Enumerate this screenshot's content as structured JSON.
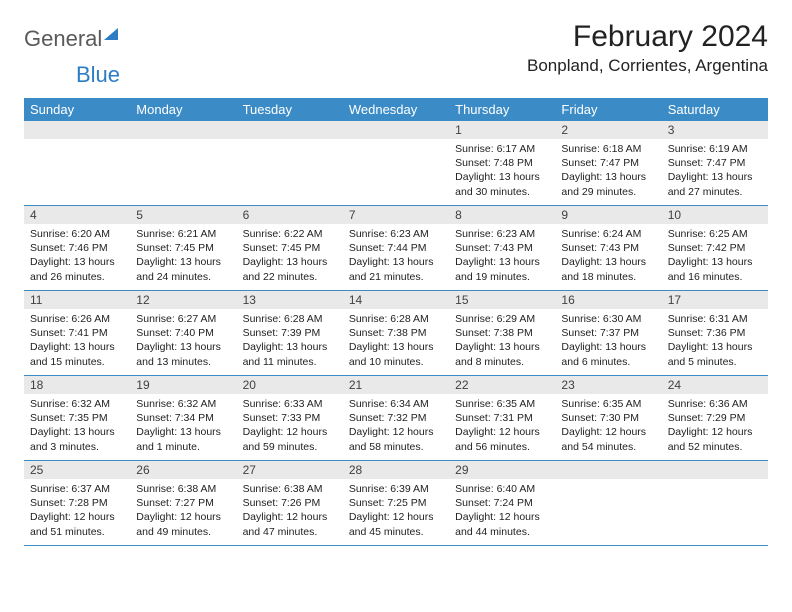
{
  "logo": {
    "part1": "General",
    "part2": "Blue"
  },
  "title": "February 2024",
  "location": "Bonpland, Corrientes, Argentina",
  "weekdays": [
    "Sunday",
    "Monday",
    "Tuesday",
    "Wednesday",
    "Thursday",
    "Friday",
    "Saturday"
  ],
  "colors": {
    "header_bg": "#3b8bc7",
    "header_text": "#ffffff",
    "daynum_bg": "#e9e9e9",
    "logo_blue": "#2d7dc4",
    "logo_gray": "#5a5a5a",
    "border": "#3b8bc7"
  },
  "layout": {
    "cols": 7,
    "rows": 5,
    "first_weekday_index": 4
  },
  "days": [
    {
      "n": "1",
      "sunrise": "6:17 AM",
      "sunset": "7:48 PM",
      "daylight": "13 hours and 30 minutes."
    },
    {
      "n": "2",
      "sunrise": "6:18 AM",
      "sunset": "7:47 PM",
      "daylight": "13 hours and 29 minutes."
    },
    {
      "n": "3",
      "sunrise": "6:19 AM",
      "sunset": "7:47 PM",
      "daylight": "13 hours and 27 minutes."
    },
    {
      "n": "4",
      "sunrise": "6:20 AM",
      "sunset": "7:46 PM",
      "daylight": "13 hours and 26 minutes."
    },
    {
      "n": "5",
      "sunrise": "6:21 AM",
      "sunset": "7:45 PM",
      "daylight": "13 hours and 24 minutes."
    },
    {
      "n": "6",
      "sunrise": "6:22 AM",
      "sunset": "7:45 PM",
      "daylight": "13 hours and 22 minutes."
    },
    {
      "n": "7",
      "sunrise": "6:23 AM",
      "sunset": "7:44 PM",
      "daylight": "13 hours and 21 minutes."
    },
    {
      "n": "8",
      "sunrise": "6:23 AM",
      "sunset": "7:43 PM",
      "daylight": "13 hours and 19 minutes."
    },
    {
      "n": "9",
      "sunrise": "6:24 AM",
      "sunset": "7:43 PM",
      "daylight": "13 hours and 18 minutes."
    },
    {
      "n": "10",
      "sunrise": "6:25 AM",
      "sunset": "7:42 PM",
      "daylight": "13 hours and 16 minutes."
    },
    {
      "n": "11",
      "sunrise": "6:26 AM",
      "sunset": "7:41 PM",
      "daylight": "13 hours and 15 minutes."
    },
    {
      "n": "12",
      "sunrise": "6:27 AM",
      "sunset": "7:40 PM",
      "daylight": "13 hours and 13 minutes."
    },
    {
      "n": "13",
      "sunrise": "6:28 AM",
      "sunset": "7:39 PM",
      "daylight": "13 hours and 11 minutes."
    },
    {
      "n": "14",
      "sunrise": "6:28 AM",
      "sunset": "7:38 PM",
      "daylight": "13 hours and 10 minutes."
    },
    {
      "n": "15",
      "sunrise": "6:29 AM",
      "sunset": "7:38 PM",
      "daylight": "13 hours and 8 minutes."
    },
    {
      "n": "16",
      "sunrise": "6:30 AM",
      "sunset": "7:37 PM",
      "daylight": "13 hours and 6 minutes."
    },
    {
      "n": "17",
      "sunrise": "6:31 AM",
      "sunset": "7:36 PM",
      "daylight": "13 hours and 5 minutes."
    },
    {
      "n": "18",
      "sunrise": "6:32 AM",
      "sunset": "7:35 PM",
      "daylight": "13 hours and 3 minutes."
    },
    {
      "n": "19",
      "sunrise": "6:32 AM",
      "sunset": "7:34 PM",
      "daylight": "13 hours and 1 minute."
    },
    {
      "n": "20",
      "sunrise": "6:33 AM",
      "sunset": "7:33 PM",
      "daylight": "12 hours and 59 minutes."
    },
    {
      "n": "21",
      "sunrise": "6:34 AM",
      "sunset": "7:32 PM",
      "daylight": "12 hours and 58 minutes."
    },
    {
      "n": "22",
      "sunrise": "6:35 AM",
      "sunset": "7:31 PM",
      "daylight": "12 hours and 56 minutes."
    },
    {
      "n": "23",
      "sunrise": "6:35 AM",
      "sunset": "7:30 PM",
      "daylight": "12 hours and 54 minutes."
    },
    {
      "n": "24",
      "sunrise": "6:36 AM",
      "sunset": "7:29 PM",
      "daylight": "12 hours and 52 minutes."
    },
    {
      "n": "25",
      "sunrise": "6:37 AM",
      "sunset": "7:28 PM",
      "daylight": "12 hours and 51 minutes."
    },
    {
      "n": "26",
      "sunrise": "6:38 AM",
      "sunset": "7:27 PM",
      "daylight": "12 hours and 49 minutes."
    },
    {
      "n": "27",
      "sunrise": "6:38 AM",
      "sunset": "7:26 PM",
      "daylight": "12 hours and 47 minutes."
    },
    {
      "n": "28",
      "sunrise": "6:39 AM",
      "sunset": "7:25 PM",
      "daylight": "12 hours and 45 minutes."
    },
    {
      "n": "29",
      "sunrise": "6:40 AM",
      "sunset": "7:24 PM",
      "daylight": "12 hours and 44 minutes."
    }
  ],
  "labels": {
    "sunrise": "Sunrise: ",
    "sunset": "Sunset: ",
    "daylight": "Daylight: "
  }
}
